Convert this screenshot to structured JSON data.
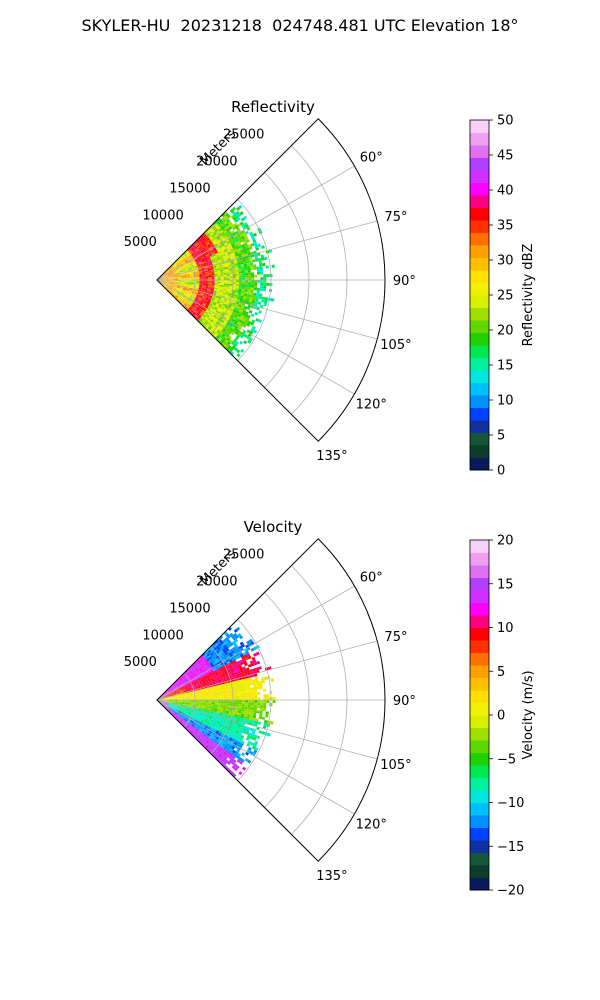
{
  "figure": {
    "suptitle": "SKYLER-HU  20231218  024748.481 UTC Elevation 18°"
  },
  "chart_data": [
    {
      "type": "heatmap",
      "title": "Reflectivity",
      "radial_label": "Meters",
      "radial_ticks": [
        5000,
        10000,
        15000,
        20000,
        25000
      ],
      "radial_tick_labels": [
        "5000",
        "10000",
        "15000",
        "20000",
        "25000"
      ],
      "rlim": [
        0,
        30000
      ],
      "angle_ticks": [
        60,
        75,
        90,
        105,
        120,
        135
      ],
      "angle_tick_labels": [
        "60°",
        "75°",
        "90°",
        "105°",
        "120°",
        "135°"
      ],
      "angle_range_deg": [
        45,
        135
      ],
      "grid": true,
      "data_extent_m": 15000,
      "field": "reflectivity",
      "colorbar": {
        "label": "Reflectivity dBZ",
        "vmin": 0,
        "vmax": 50,
        "ticks": [
          0,
          5,
          10,
          15,
          20,
          25,
          30,
          35,
          40,
          45,
          50
        ],
        "tick_labels": [
          "0",
          "5",
          "10",
          "15",
          "20",
          "25",
          "30",
          "35",
          "40",
          "45",
          "50"
        ],
        "colors": [
          "#0a1a5a",
          "#0a3d2a",
          "#15553a",
          "#1030a0",
          "#0040ff",
          "#0090ff",
          "#00c0ff",
          "#00e8e0",
          "#00f0a0",
          "#00e850",
          "#20d000",
          "#60d800",
          "#a0e000",
          "#d8f000",
          "#f0f000",
          "#ffe000",
          "#ffc000",
          "#ffa000",
          "#ff7000",
          "#ff3000",
          "#ff0000",
          "#ff0080",
          "#ff00ff",
          "#d030ff",
          "#b040ff",
          "#e070f0",
          "#f0a0f0",
          "#f8d0f8"
        ]
      }
    },
    {
      "type": "heatmap",
      "title": "Velocity",
      "radial_label": "Meters",
      "radial_ticks": [
        5000,
        10000,
        15000,
        20000,
        25000
      ],
      "radial_tick_labels": [
        "5000",
        "10000",
        "15000",
        "20000",
        "25000"
      ],
      "rlim": [
        0,
        30000
      ],
      "angle_ticks": [
        60,
        75,
        90,
        105,
        120,
        135
      ],
      "angle_tick_labels": [
        "60°",
        "75°",
        "90°",
        "105°",
        "120°",
        "135°"
      ],
      "angle_range_deg": [
        45,
        135
      ],
      "grid": true,
      "data_extent_m": 15000,
      "field": "velocity",
      "colorbar": {
        "label": "Velocity (m/s)",
        "vmin": -20,
        "vmax": 20,
        "ticks": [
          -20,
          -15,
          -10,
          -5,
          0,
          5,
          10,
          15,
          20
        ],
        "tick_labels": [
          "−20",
          "−15",
          "−10",
          "−5",
          "0",
          "5",
          "10",
          "15",
          "20"
        ],
        "colors": [
          "#0a1a5a",
          "#0a3d2a",
          "#15553a",
          "#1030a0",
          "#0040ff",
          "#0090ff",
          "#00c0ff",
          "#00e8e0",
          "#00f0a0",
          "#00e850",
          "#20d000",
          "#60d800",
          "#a0e000",
          "#d8f000",
          "#f0f000",
          "#ffe000",
          "#ffc000",
          "#ffa000",
          "#ff7000",
          "#ff3000",
          "#ff0000",
          "#ff0080",
          "#ff00ff",
          "#d030ff",
          "#b040ff",
          "#e070f0",
          "#f0a0f0",
          "#f8d0f8"
        ]
      }
    }
  ]
}
